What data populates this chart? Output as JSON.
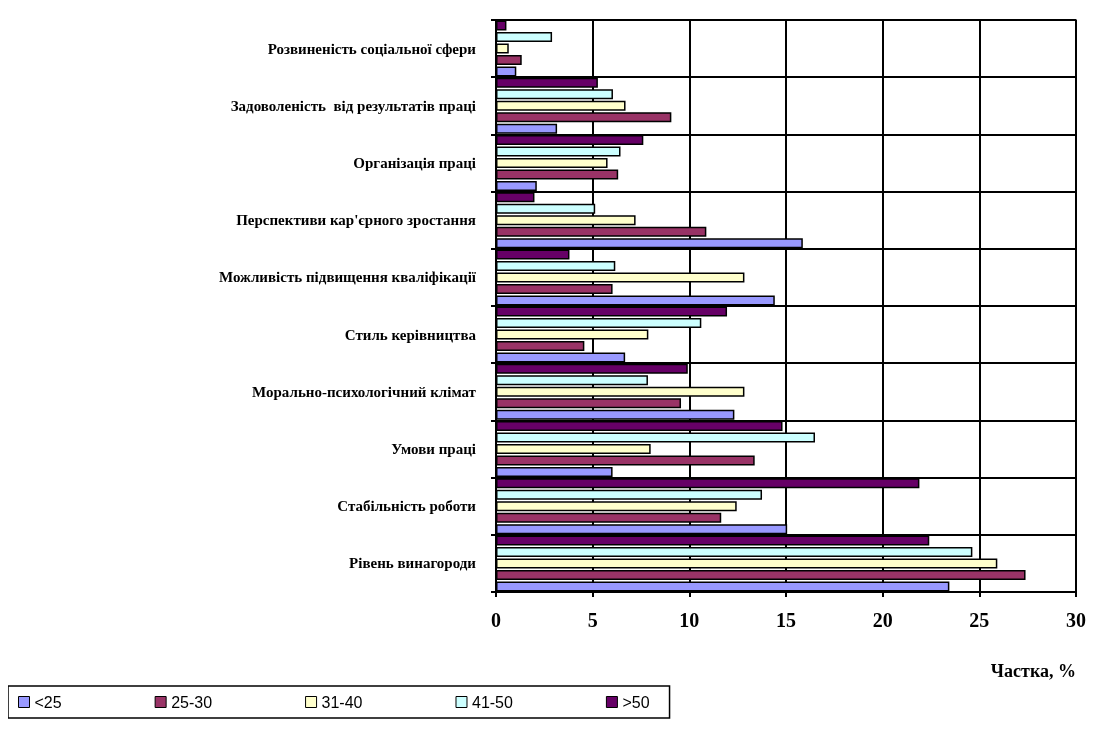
{
  "chart_data": {
    "type": "bar",
    "orientation": "horizontal",
    "xlabel": "Частка, %",
    "categories": [
      "Розвиненість соціальної сфери",
      "Задоволеність  від результатів праці",
      "Організація праці",
      "Перспективи кар'єрного зростання",
      "Можливість підвищення кваліфікації",
      "Стиль керівництва",
      "Морально-психологічний клімат",
      "Умови праці",
      "Стабільність роботи",
      "Рівень винагороди"
    ],
    "series": [
      {
        "name": "<25",
        "color": "#9999ff",
        "values": [
          1.05,
          3.16,
          2.11,
          15.87,
          14.42,
          6.68,
          12.33,
          6.03,
          15.06,
          23.45
        ]
      },
      {
        "name": "25-30",
        "color": "#993366",
        "values": [
          1.33,
          9.07,
          6.32,
          10.88,
          6.03,
          4.57,
          9.57,
          13.38,
          11.65,
          27.39
        ]
      },
      {
        "name": "31-40",
        "color": "#ffffcc",
        "values": [
          0.66,
          6.7,
          5.77,
          7.22,
          12.85,
          7.88,
          12.85,
          8.0,
          12.45,
          25.93
        ]
      },
      {
        "name": "41-50",
        "color": "#ccffff",
        "values": [
          2.9,
          6.05,
          6.44,
          5.13,
          6.17,
          10.62,
          7.86,
          16.5,
          13.76,
          24.64
        ]
      },
      {
        "name": ">50",
        "color": "#660066",
        "values": [
          0.54,
          5.27,
          7.62,
          1.99,
          3.8,
          11.95,
          9.92,
          14.82,
          21.9,
          22.41
        ]
      }
    ],
    "xlim": [
      0,
      30
    ],
    "xticks": [
      0,
      5,
      10,
      15,
      20,
      25,
      30
    ],
    "grid": true,
    "legend": "bottom"
  }
}
